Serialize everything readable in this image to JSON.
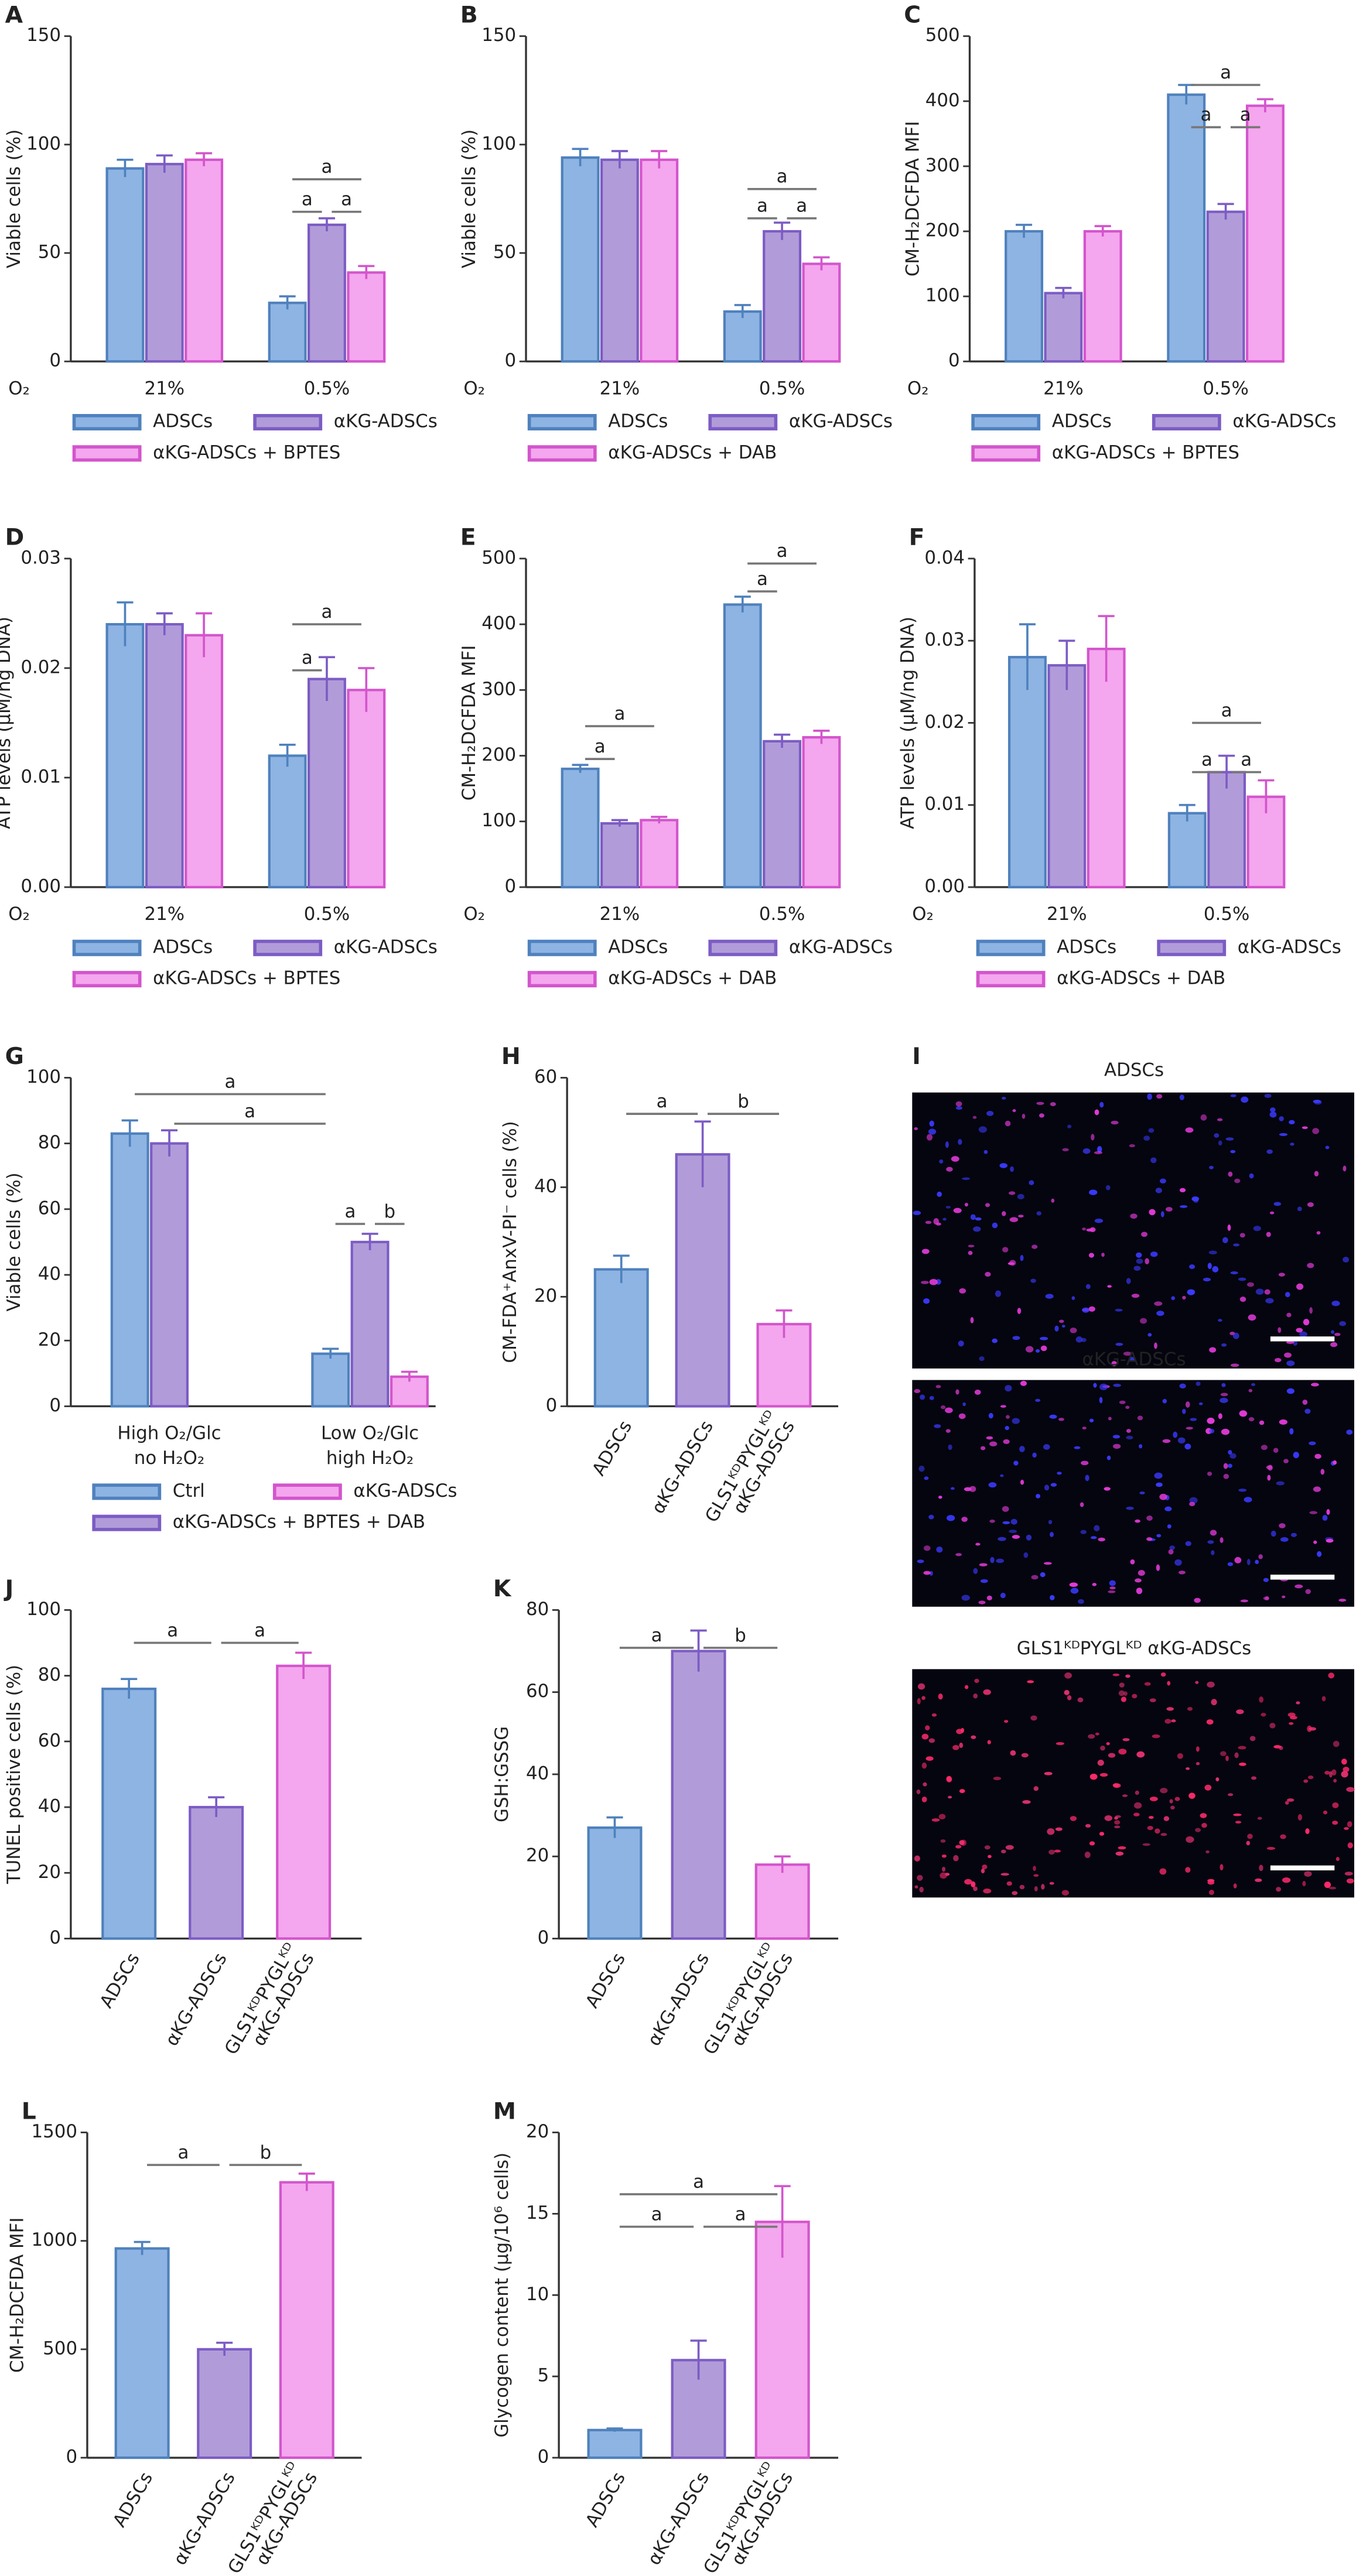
{
  "chart_data": [
    {
      "panel": "A",
      "type": "grouped_bar",
      "ylabel": "Viable cells (%)",
      "xlabel": "O₂",
      "categories": [
        "21%",
        "0.5%"
      ],
      "ylim": [
        0,
        150
      ],
      "yticks": [
        0,
        50,
        100,
        150
      ],
      "series": [
        {
          "name": "ADSCs",
          "color": "#8eb4e3",
          "edgecolor": "#4f81bd",
          "values": [
            89,
            27
          ],
          "errors": [
            4,
            3
          ]
        },
        {
          "name": "αKG-ADSCs",
          "color": "#b19cd9",
          "edgecolor": "#7c5cc4",
          "values": [
            91,
            63
          ],
          "errors": [
            4,
            3
          ]
        },
        {
          "name": "αKG-ADSCs + BPTES",
          "color": "#f4a6ee",
          "edgecolor": "#d355cc",
          "values": [
            93,
            41
          ],
          "errors": [
            3,
            3
          ]
        }
      ],
      "annotations": [
        "a",
        "a",
        "a"
      ]
    },
    {
      "panel": "B",
      "type": "grouped_bar",
      "ylabel": "Viable cells (%)",
      "xlabel": "O₂",
      "categories": [
        "21%",
        "0.5%"
      ],
      "ylim": [
        0,
        150
      ],
      "yticks": [
        0,
        50,
        100,
        150
      ],
      "series": [
        {
          "name": "ADSCs",
          "color": "#8eb4e3",
          "edgecolor": "#4f81bd",
          "values": [
            94,
            23
          ],
          "errors": [
            4,
            3
          ]
        },
        {
          "name": "αKG-ADSCs",
          "color": "#b19cd9",
          "edgecolor": "#7c5cc4",
          "values": [
            93,
            60
          ],
          "errors": [
            4,
            4
          ]
        },
        {
          "name": "αKG-ADSCs + DAB",
          "color": "#f4a6ee",
          "edgecolor": "#d355cc",
          "values": [
            93,
            45
          ],
          "errors": [
            4,
            3
          ]
        }
      ],
      "annotations": [
        "a",
        "a",
        "a"
      ]
    },
    {
      "panel": "C",
      "type": "grouped_bar",
      "ylabel": "CM-H₂DCFDA MFI",
      "xlabel": "O₂",
      "categories": [
        "21%",
        "0.5%"
      ],
      "ylim": [
        0,
        500
      ],
      "yticks": [
        0,
        100,
        200,
        300,
        400,
        500
      ],
      "series": [
        {
          "name": "ADSCs",
          "color": "#8eb4e3",
          "edgecolor": "#4f81bd",
          "values": [
            200,
            410
          ],
          "errors": [
            10,
            15
          ]
        },
        {
          "name": "αKG-ADSCs",
          "color": "#b19cd9",
          "edgecolor": "#7c5cc4",
          "values": [
            105,
            230
          ],
          "errors": [
            8,
            12
          ]
        },
        {
          "name": "αKG-ADSCs + BPTES",
          "color": "#f4a6ee",
          "edgecolor": "#d355cc",
          "values": [
            200,
            393
          ],
          "errors": [
            8,
            10
          ]
        }
      ],
      "annotations": [
        "a",
        "a",
        "a"
      ]
    },
    {
      "panel": "D",
      "type": "grouped_bar",
      "ylabel": "ATP levels (μM/ng DNA)",
      "xlabel": "O₂",
      "categories": [
        "21%",
        "0.5%"
      ],
      "ylim": [
        0,
        0.03
      ],
      "yticks": [
        {
          "value": 0,
          "label": "0.00"
        },
        0.01,
        0.02,
        0.03
      ],
      "series": [
        {
          "name": "ADSCs",
          "color": "#8eb4e3",
          "edgecolor": "#4f81bd",
          "values": [
            0.024,
            0.012
          ],
          "errors": [
            0.002,
            0.001
          ]
        },
        {
          "name": "αKG-ADSCs",
          "color": "#b19cd9",
          "edgecolor": "#7c5cc4",
          "values": [
            0.024,
            0.019
          ],
          "errors": [
            0.001,
            0.002
          ]
        },
        {
          "name": "αKG-ADSCs + BPTES",
          "color": "#f4a6ee",
          "edgecolor": "#d355cc",
          "values": [
            0.023,
            0.018
          ],
          "errors": [
            0.002,
            0.002
          ]
        }
      ],
      "annotations": [
        "a",
        "a"
      ]
    },
    {
      "panel": "E",
      "type": "grouped_bar",
      "ylabel": "CM-H₂DCFDA MFI",
      "xlabel": "O₂",
      "categories": [
        "21%",
        "0.5%"
      ],
      "ylim": [
        0,
        500
      ],
      "yticks": [
        0,
        100,
        200,
        300,
        400,
        500
      ],
      "series": [
        {
          "name": "ADSCs",
          "color": "#8eb4e3",
          "edgecolor": "#4f81bd",
          "values": [
            180,
            430
          ],
          "errors": [
            6,
            12
          ]
        },
        {
          "name": "αKG-ADSCs",
          "color": "#b19cd9",
          "edgecolor": "#7c5cc4",
          "values": [
            97,
            222
          ],
          "errors": [
            5,
            10
          ]
        },
        {
          "name": "αKG-ADSCs + DAB",
          "color": "#f4a6ee",
          "edgecolor": "#d355cc",
          "values": [
            102,
            228
          ],
          "errors": [
            5,
            10
          ]
        }
      ],
      "annotations": [
        "a",
        "a",
        "a",
        "a"
      ]
    },
    {
      "panel": "F",
      "type": "grouped_bar",
      "ylabel": "ATP levels (μM/ng DNA)",
      "xlabel": "O₂",
      "categories": [
        "21%",
        "0.5%"
      ],
      "ylim": [
        0,
        0.04
      ],
      "yticks": [
        {
          "value": 0,
          "label": "0.00"
        },
        0.01,
        0.02,
        0.03,
        0.04
      ],
      "series": [
        {
          "name": "ADSCs",
          "color": "#8eb4e3",
          "edgecolor": "#4f81bd",
          "values": [
            0.028,
            0.009
          ],
          "errors": [
            0.004,
            0.001
          ]
        },
        {
          "name": "αKG-ADSCs",
          "color": "#b19cd9",
          "edgecolor": "#7c5cc4",
          "values": [
            0.027,
            0.014
          ],
          "errors": [
            0.003,
            0.002
          ]
        },
        {
          "name": "αKG-ADSCs + DAB",
          "color": "#f4a6ee",
          "edgecolor": "#d355cc",
          "values": [
            0.029,
            0.011
          ],
          "errors": [
            0.004,
            0.002
          ]
        }
      ],
      "annotations": [
        "a",
        "a",
        "a"
      ]
    },
    {
      "panel": "G",
      "type": "grouped_bar",
      "ylabel": "Viable cells (%)",
      "categories": [
        [
          "High O₂/Glc",
          "no H₂O₂"
        ],
        [
          "Low O₂/Glc",
          "high H₂O₂"
        ]
      ],
      "ylim": [
        0,
        100
      ],
      "yticks": [
        0,
        20,
        40,
        60,
        80,
        100
      ],
      "series": [
        {
          "name": "Ctrl",
          "color": "#8eb4e3",
          "edgecolor": "#4f81bd",
          "values": [
            83,
            16
          ],
          "errors": [
            4,
            1.5
          ]
        },
        {
          "name": "αKG-ADSCs + BPTES + DAB",
          "color": "#b19cd9",
          "edgecolor": "#7c5cc4",
          "values": [
            80,
            50
          ],
          "errors": [
            4,
            2.5
          ]
        },
        {
          "name": "αKG-ADSCs",
          "color": "#f4a6ee",
          "edgecolor": "#d355cc",
          "values": [
            null,
            9
          ],
          "errors": [
            null,
            1.5
          ]
        }
      ],
      "annotations": [
        "a",
        "a",
        "a",
        "b"
      ]
    },
    {
      "panel": "H",
      "type": "bar",
      "ylabel": "CM-FDA⁺AnxV-PI⁻ cells (%)",
      "categories": [
        [
          "ADSCs"
        ],
        [
          "αKG-ADSCs"
        ],
        [
          "GLS1ᴷᴰPYGLᴷᴰ",
          "αKG-ADSCs"
        ]
      ],
      "ylim": [
        0,
        60
      ],
      "yticks": [
        0,
        20,
        40,
        60
      ],
      "values": [
        25,
        46,
        15
      ],
      "errors": [
        2.5,
        6,
        2.5
      ],
      "colors": [
        "#8eb4e3",
        "#b19cd9",
        "#f4a6ee"
      ],
      "edgecolors": [
        "#4f81bd",
        "#7c5cc4",
        "#d355cc"
      ],
      "annotations": [
        "a",
        "b"
      ]
    },
    {
      "panel": "J",
      "type": "bar",
      "ylabel": "TUNEL positive cells (%)",
      "categories": [
        [
          "ADSCs"
        ],
        [
          "αKG-ADSCs"
        ],
        [
          "GLS1ᴷᴰPYGLᴷᴰ",
          "αKG-ADSCs"
        ]
      ],
      "ylim": [
        0,
        100
      ],
      "yticks": [
        0,
        20,
        40,
        60,
        80,
        100
      ],
      "values": [
        76,
        40,
        83
      ],
      "errors": [
        3,
        3,
        4
      ],
      "colors": [
        "#8eb4e3",
        "#b19cd9",
        "#f4a6ee"
      ],
      "edgecolors": [
        "#4f81bd",
        "#7c5cc4",
        "#d355cc"
      ],
      "annotations": [
        "a",
        "a"
      ]
    },
    {
      "panel": "K",
      "type": "bar",
      "ylabel": "GSH:GSSG",
      "categories": [
        [
          "ADSCs"
        ],
        [
          "αKG-ADSCs"
        ],
        [
          "GLS1ᴷᴰPYGLᴷᴰ",
          "αKG-ADSCs"
        ]
      ],
      "ylim": [
        0,
        80
      ],
      "yticks": [
        0,
        20,
        40,
        60,
        80
      ],
      "values": [
        27,
        70,
        18
      ],
      "errors": [
        2.5,
        5,
        2
      ],
      "colors": [
        "#8eb4e3",
        "#b19cd9",
        "#f4a6ee"
      ],
      "edgecolors": [
        "#4f81bd",
        "#7c5cc4",
        "#d355cc"
      ],
      "annotations": [
        "a",
        "b"
      ]
    },
    {
      "panel": "L",
      "type": "bar",
      "ylabel": "CM-H₂DCFDA MFI",
      "categories": [
        [
          "ADSCs"
        ],
        [
          "αKG-ADSCs"
        ],
        [
          "GLS1ᴷᴰPYGLᴷᴰ",
          "αKG-ADSCs"
        ]
      ],
      "ylim": [
        0,
        1500
      ],
      "yticks": [
        0,
        500,
        1000,
        1500
      ],
      "values": [
        965,
        500,
        1270
      ],
      "errors": [
        30,
        30,
        40
      ],
      "colors": [
        "#8eb4e3",
        "#b19cd9",
        "#f4a6ee"
      ],
      "edgecolors": [
        "#4f81bd",
        "#7c5cc4",
        "#d355cc"
      ],
      "annotations": [
        "a",
        "b"
      ]
    },
    {
      "panel": "M",
      "type": "bar",
      "ylabel": "Glycogen content (μg/10⁶ cells)",
      "categories": [
        [
          "ADSCs"
        ],
        [
          "αKG-ADSCs"
        ],
        [
          "GLS1ᴷᴰPYGLᴷᴰ",
          "αKG-ADSCs"
        ]
      ],
      "ylim": [
        0,
        20
      ],
      "yticks": [
        0,
        5,
        10,
        15,
        20
      ],
      "values": [
        1.7,
        6,
        14.5
      ],
      "errors": [
        0.1,
        1.2,
        2.2
      ],
      "colors": [
        "#8eb4e3",
        "#b19cd9",
        "#f4a6ee"
      ],
      "edgecolors": [
        "#4f81bd",
        "#7c5cc4",
        "#d355cc"
      ],
      "annotations": [
        "a",
        "a",
        "a"
      ]
    }
  ],
  "micrographs": {
    "panel": "I",
    "labels": [
      "ADSCs",
      "αKG-ADSCs",
      "GLS1ᴷᴰPYGLᴷᴰ αKG-ADSCs"
    ]
  }
}
